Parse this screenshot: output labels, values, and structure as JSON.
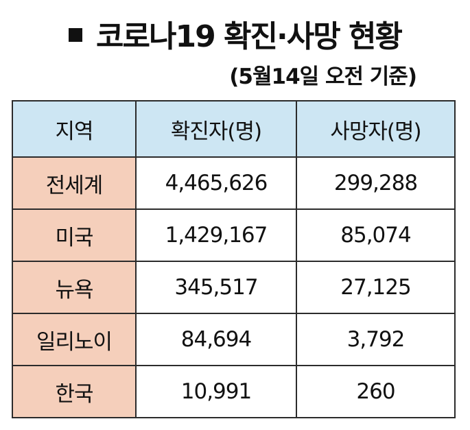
{
  "title": "코로나19 확진·사망 현황",
  "subtitle": "(5월14일 오전 기준)",
  "colors": {
    "header_bg": "#cde6f3",
    "region_bg": "#f5cfbb",
    "border": "#2b2b2b",
    "text": "#111111"
  },
  "table": {
    "headers": [
      "지역",
      "확진자(명)",
      "사망자(명)"
    ],
    "rows": [
      {
        "region": "전세계",
        "confirmed": "4,465,626",
        "deaths": "299,288"
      },
      {
        "region": "미국",
        "confirmed": "1,429,167",
        "deaths": "85,074"
      },
      {
        "region": "뉴욕",
        "confirmed": "345,517",
        "deaths": "27,125"
      },
      {
        "region": "일리노이",
        "confirmed": "84,694",
        "deaths": "3,792"
      },
      {
        "region": "한국",
        "confirmed": "10,991",
        "deaths": "260"
      }
    ]
  }
}
